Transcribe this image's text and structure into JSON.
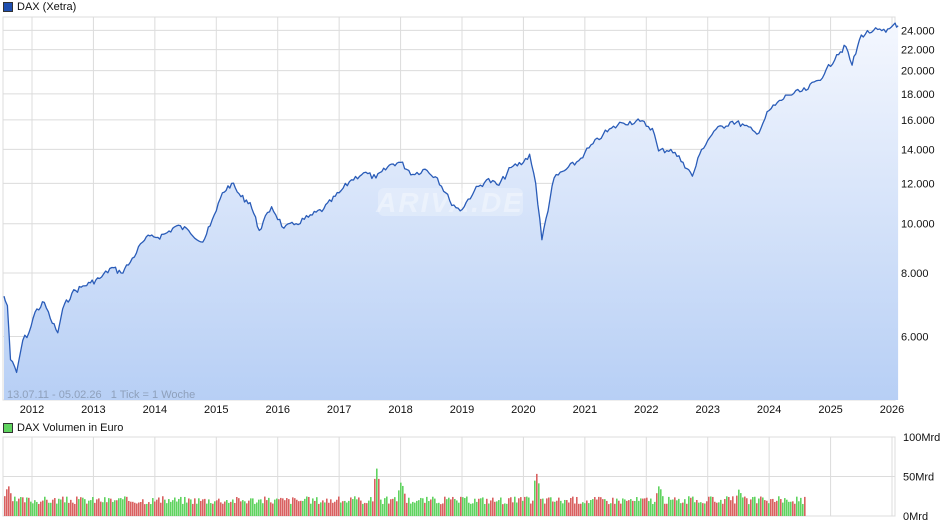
{
  "price_legend": {
    "label": "DAX (Xetra)",
    "color": "#1f4fb0"
  },
  "volume_legend": {
    "label": "DAX Volumen in Euro",
    "color": "#5fd35f"
  },
  "range_label": "13.07.11 - 05.02.26   1 Tick = 1 Woche",
  "watermark": "ARIVA.DE",
  "colors": {
    "line": "#2a5cb8",
    "area_top": "#f4f7fe",
    "area_bottom": "#b7cff5",
    "grid": "#dcdcdc",
    "volume_up": "#5fd35f",
    "volume_down": "#d96060"
  },
  "chart_data": [
    {
      "type": "area",
      "title": "DAX (Xetra)",
      "xlabel": "",
      "ylabel": "",
      "y_scale": "log",
      "date_range": "13.07.11 - 05.02.26",
      "tick_note": "1 Tick = 1 Woche",
      "x_ticks": [
        "2012",
        "2013",
        "2014",
        "2015",
        "2016",
        "2017",
        "2018",
        "2019",
        "2020",
        "2021",
        "2022",
        "2023",
        "2024",
        "2025",
        "2026"
      ],
      "y_ticks": [
        "6.000",
        "8.000",
        "10.000",
        "12.000",
        "14.000",
        "16.000",
        "18.000",
        "20.000",
        "22.000",
        "24.000"
      ],
      "ylim": [
        4500,
        25500
      ],
      "grid": true,
      "legend_position": "top-left",
      "x": [
        2011.53,
        2011.6,
        2011.65,
        2011.75,
        2011.85,
        2011.95,
        2012.05,
        2012.2,
        2012.3,
        2012.42,
        2012.5,
        2012.65,
        2012.8,
        2012.95,
        2013.1,
        2013.3,
        2013.45,
        2013.6,
        2013.8,
        2013.95,
        2014.05,
        2014.2,
        2014.35,
        2014.55,
        2014.78,
        2014.9,
        2015.0,
        2015.1,
        2015.25,
        2015.4,
        2015.55,
        2015.7,
        2015.9,
        2016.1,
        2016.3,
        2016.5,
        2016.75,
        2017.0,
        2017.2,
        2017.4,
        2017.6,
        2017.85,
        2018.0,
        2018.2,
        2018.4,
        2018.6,
        2018.8,
        2018.97,
        2019.2,
        2019.4,
        2019.6,
        2019.8,
        2020.0,
        2020.1,
        2020.2,
        2020.3,
        2020.5,
        2020.7,
        2020.9,
        2021.0,
        2021.3,
        2021.6,
        2021.9,
        2022.1,
        2022.2,
        2022.4,
        2022.6,
        2022.75,
        2022.9,
        2023.1,
        2023.4,
        2023.6,
        2023.8,
        2024.0,
        2024.3,
        2024.6,
        2024.9,
        2025.1,
        2025.25,
        2025.35,
        2025.5,
        2025.7,
        2025.9,
        2026.05,
        2026.1
      ],
      "values": [
        7200,
        6900,
        5400,
        5100,
        5900,
        6100,
        6700,
        7000,
        6500,
        6100,
        6800,
        7300,
        7500,
        7650,
        7800,
        8200,
        8000,
        8400,
        9200,
        9500,
        9400,
        9600,
        9900,
        9700,
        9200,
        9900,
        10600,
        11500,
        12000,
        11300,
        11000,
        9700,
        10800,
        9800,
        10000,
        10300,
        10700,
        11500,
        12200,
        12600,
        12300,
        13100,
        13200,
        12500,
        12800,
        12300,
        11100,
        10600,
        11600,
        12200,
        11900,
        12900,
        13200,
        13700,
        12000,
        9300,
        12300,
        12800,
        13300,
        13800,
        15000,
        15800,
        15900,
        15400,
        13900,
        14000,
        13200,
        12400,
        14000,
        15200,
        15900,
        15600,
        15000,
        16700,
        17900,
        18300,
        19700,
        21500,
        22300,
        20500,
        23500,
        24000,
        23800,
        24800,
        24500
      ]
    },
    {
      "type": "bar",
      "title": "DAX Volumen in Euro",
      "y_ticks": [
        "0Mrd",
        "50Mrd",
        "100Mrd"
      ],
      "ylim": [
        0,
        100
      ],
      "unit": "Mrd EUR",
      "grid": true,
      "colors": {
        "up": "#5fd35f",
        "down": "#d96060"
      },
      "typical_weekly_range": [
        15,
        25
      ],
      "notable_peaks": [
        {
          "x": 2011.6,
          "value": 40
        },
        {
          "x": 2017.6,
          "value": 60
        },
        {
          "x": 2018.0,
          "value": 45
        },
        {
          "x": 2020.2,
          "value": 55
        },
        {
          "x": 2022.2,
          "value": 40
        },
        {
          "x": 2023.5,
          "value": 35
        }
      ],
      "data_ends_x": 2024.6
    }
  ]
}
